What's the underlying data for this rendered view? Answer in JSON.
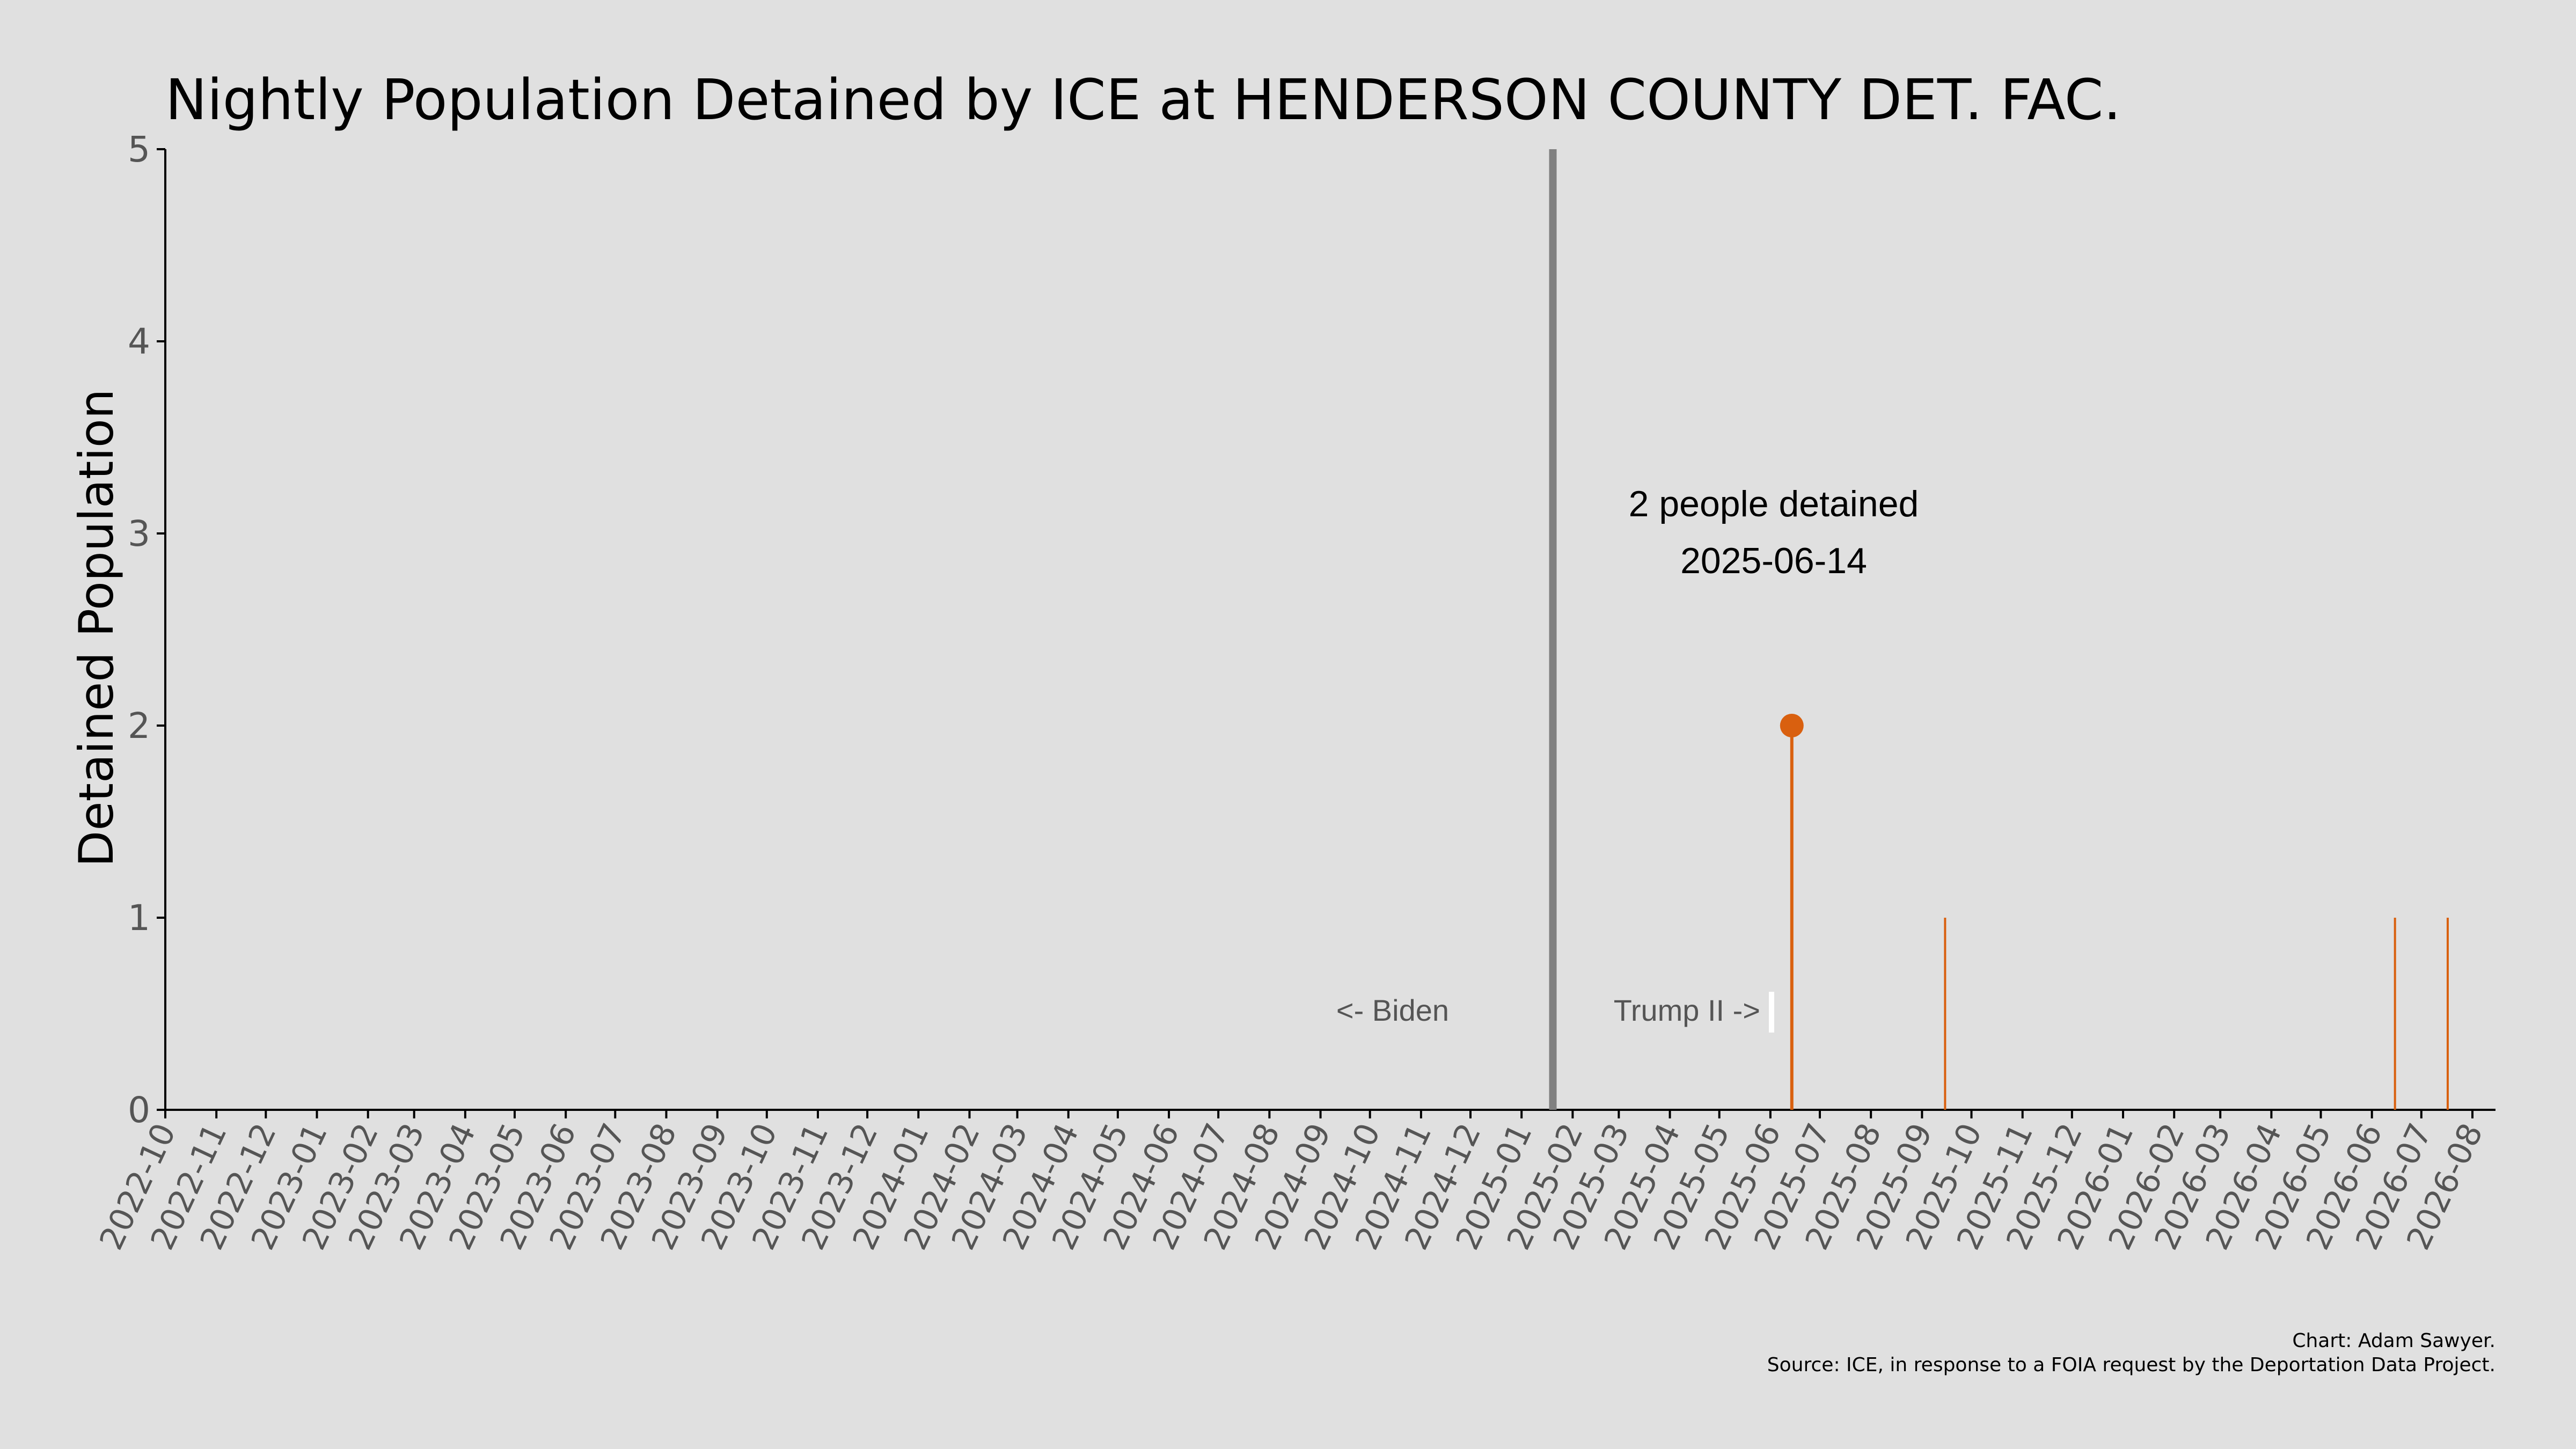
{
  "chart_data": {
    "type": "line",
    "title": "Nightly Population Detained by ICE at HENDERSON COUNTY DET. FAC.",
    "xlabel": "",
    "ylabel": "Detained Population",
    "xlim": [
      "2022-10-01",
      "2026-08-15"
    ],
    "ylim": [
      0,
      5
    ],
    "yticks": [
      0,
      1,
      2,
      3,
      4,
      5
    ],
    "xticks": [
      "2022-10",
      "2022-11",
      "2022-12",
      "2023-01",
      "2023-02",
      "2023-03",
      "2023-04",
      "2023-05",
      "2023-06",
      "2023-07",
      "2023-08",
      "2023-09",
      "2023-10",
      "2023-11",
      "2023-12",
      "2024-01",
      "2024-02",
      "2024-03",
      "2024-04",
      "2024-05",
      "2024-06",
      "2024-07",
      "2024-08",
      "2024-09",
      "2024-10",
      "2024-11",
      "2024-12",
      "2025-01",
      "2025-02",
      "2025-03",
      "2025-04",
      "2025-05",
      "2025-06",
      "2025-07",
      "2025-08",
      "2025-09",
      "2025-10",
      "2025-11",
      "2025-12",
      "2026-01",
      "2026-02",
      "2026-03",
      "2026-04",
      "2026-05",
      "2026-06",
      "2026-07",
      "2026-08"
    ],
    "grid": false,
    "series": [
      {
        "color": "#d9600f",
        "points": [
          {
            "x": "2025-06-14",
            "y": 2
          },
          {
            "x": "2025-09-15",
            "y": 1
          },
          {
            "x": "2026-06-15",
            "y": 1
          },
          {
            "x": "2026-07-17",
            "y": 1
          }
        ]
      }
    ],
    "highlight": {
      "x": "2025-06-14",
      "y": 2,
      "label_line1": "2 people detained",
      "label_line2": "2025-06-14"
    },
    "vline": {
      "x": "2025-01-20",
      "color": "#808080"
    },
    "era_labels": {
      "left": "<- Biden",
      "right": "Trump II ->"
    },
    "credit_line1": "Chart: Adam Sawyer.",
    "credit_line2": "Source: ICE, in response to a FOIA request by the Deportation Data Project."
  }
}
